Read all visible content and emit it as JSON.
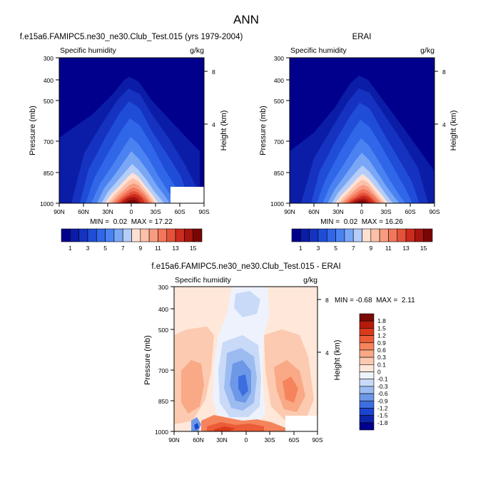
{
  "figure": {
    "title": "ANN"
  },
  "chart_data": [
    {
      "type": "contour",
      "title": "f.e15a6.FAMIPC5.ne30_ne30.Club_Test.015 (yrs 1979-2004)",
      "left_label": "Specific humidity",
      "right_label": "g/kg",
      "ylabel": "Pressure (mb)",
      "ylabel_right": "Height (km)",
      "x_ticks": [
        "90N",
        "60N",
        "30N",
        "0",
        "30S",
        "60S",
        "90S"
      ],
      "y_ticks": [
        "300",
        "400",
        "500",
        "700",
        "850",
        "1000"
      ],
      "height_ticks": [
        "8",
        "4"
      ],
      "stats": "MIN =  0.02  MAX = 17.22",
      "min": 0.02,
      "max": 17.22,
      "colorbar_labels": [
        "1",
        "3",
        "5",
        "7",
        "9",
        "11",
        "13",
        "15"
      ],
      "colors": [
        "#00008c",
        "#0b1da6",
        "#1533c0",
        "#1f4dd8",
        "#3066e8",
        "#4a82f2",
        "#7aa6f6",
        "#b4cdf9",
        "#ffe1d4",
        "#fcc0a8",
        "#f89c80",
        "#f2775a",
        "#e5523a",
        "#cc2b1e",
        "#a8140f",
        "#7a0505"
      ]
    },
    {
      "type": "contour",
      "title": "ERAI",
      "left_label": "Specific humidity",
      "right_label": "g/kg",
      "ylabel": "Pressure (mb)",
      "ylabel_right": "Height (km)",
      "x_ticks": [
        "90N",
        "60N",
        "30N",
        "0",
        "30S",
        "60S",
        "90S"
      ],
      "y_ticks": [
        "300",
        "400",
        "500",
        "700",
        "850",
        "1000"
      ],
      "height_ticks": [
        "8",
        "4"
      ],
      "stats": "MIN =  0.02  MAX = 16.26",
      "min": 0.02,
      "max": 16.26,
      "colorbar_labels": [
        "1",
        "3",
        "5",
        "7",
        "9",
        "11",
        "13",
        "15"
      ],
      "colors": [
        "#00008c",
        "#0b1da6",
        "#1533c0",
        "#1f4dd8",
        "#3066e8",
        "#4a82f2",
        "#7aa6f6",
        "#b4cdf9",
        "#ffe1d4",
        "#fcc0a8",
        "#f89c80",
        "#f2775a",
        "#e5523a",
        "#cc2b1e",
        "#a8140f",
        "#7a0505"
      ]
    },
    {
      "type": "contour",
      "title": "f.e15a6.FAMIPC5.ne30_ne30.Club_Test.015 - ERAI",
      "left_label": "Specific humidity",
      "right_label": "g/kg",
      "ylabel": "Pressure (mb)",
      "ylabel_right": "Height (km)",
      "x_ticks": [
        "90N",
        "60N",
        "30N",
        "0",
        "30S",
        "60S",
        "90S"
      ],
      "y_ticks": [
        "300",
        "400",
        "500",
        "700",
        "850",
        "1000"
      ],
      "height_ticks": [
        "8",
        "4"
      ],
      "stats": "MIN = -0.68  MAX =  2.11",
      "min": -0.68,
      "max": 2.11,
      "colorbar_labels": [
        "1.8",
        "1.5",
        "1.2",
        "0.9",
        "0.6",
        "0.3",
        "0.1",
        "0",
        "-0.1",
        "-0.3",
        "-0.6",
        "-0.9",
        "-1.2",
        "-1.5",
        "-1.8"
      ],
      "colors": [
        "#7a0a05",
        "#b51a0c",
        "#d93a1c",
        "#ec5c38",
        "#f5845c",
        "#f9a985",
        "#fccab0",
        "#ffe7d9",
        "#eef2fd",
        "#c8daf7",
        "#9cbcf1",
        "#6d98e8",
        "#3d6ee0",
        "#1a45d0",
        "#0b24a8",
        "#00008c"
      ]
    }
  ]
}
